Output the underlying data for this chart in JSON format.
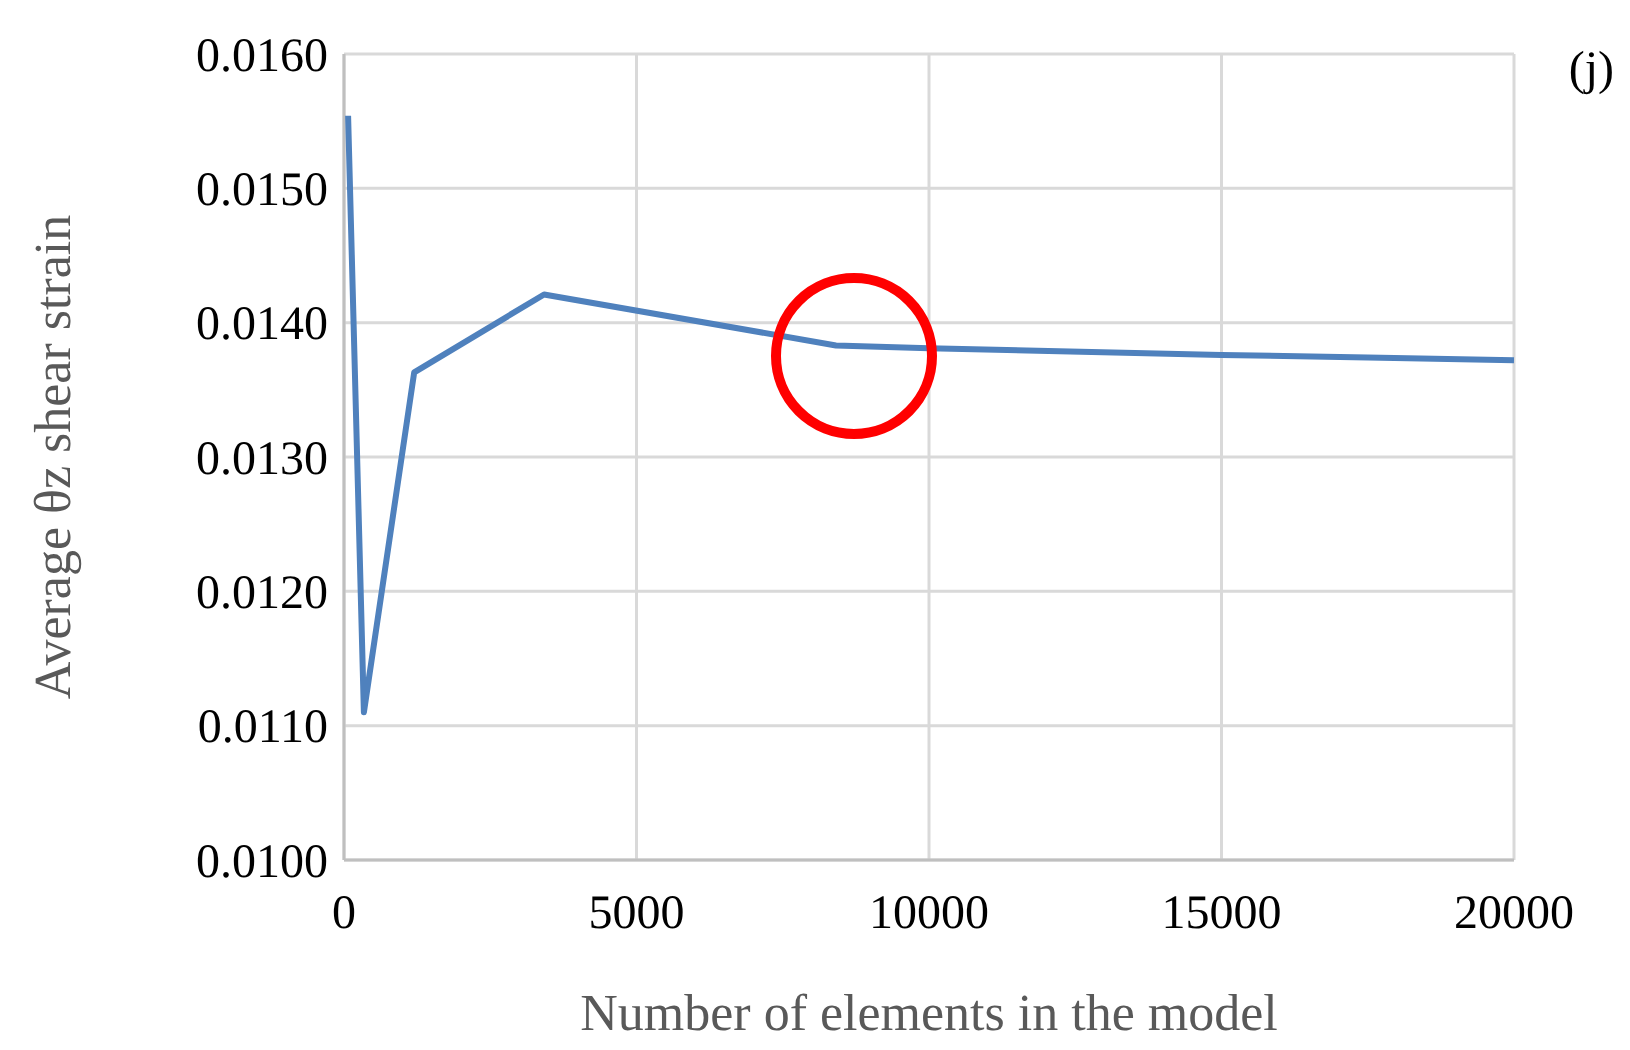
{
  "chart_data": {
    "type": "line",
    "xlabel": "Number of elements in the model",
    "ylabel": "Average θz shear strain",
    "annotations": [
      "(j)"
    ],
    "x": [
      70,
      340,
      1200,
      3420,
      8410,
      10000,
      15000,
      17500,
      20000
    ],
    "series": [
      {
        "color": "#4f81bd",
        "values": [
          0.01554,
          0.0111,
          0.01363,
          0.01421,
          0.01383,
          0.01381,
          0.01376,
          0.01374,
          0.01372
        ]
      }
    ],
    "xlim": [
      0,
      20000
    ],
    "xticks": [
      0,
      5000,
      10000,
      15000,
      20000
    ],
    "ylim": [
      0.01,
      0.016
    ],
    "yticks": [
      {
        "value": 0.01,
        "label": "0.0100"
      },
      {
        "value": 0.011,
        "label": "0.0110"
      },
      {
        "value": 0.012,
        "label": "0.0120"
      },
      {
        "value": 0.013,
        "label": "0.0130"
      },
      {
        "value": 0.014,
        "label": "0.0140"
      },
      {
        "value": 0.015,
        "label": "0.0150"
      },
      {
        "value": 0.016,
        "label": "0.0160"
      }
    ],
    "grid": true,
    "line_style": "solid",
    "marker": "none"
  }
}
